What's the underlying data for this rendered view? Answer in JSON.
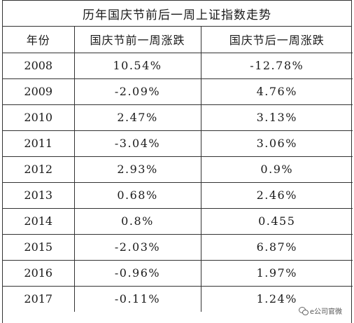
{
  "table": {
    "title": "历年国庆节前后一周上证指数走势",
    "headers": [
      "年份",
      "国庆节前一周涨跌",
      "国庆节后一周涨跌"
    ],
    "rows": [
      {
        "year": "2008",
        "before": "10.54%",
        "after": "-12.78%"
      },
      {
        "year": "2009",
        "before": "-2.09%",
        "after": "4.76%"
      },
      {
        "year": "2010",
        "before": "2.47%",
        "after": "3.13%"
      },
      {
        "year": "2011",
        "before": "-3.04%",
        "after": "3.06%"
      },
      {
        "year": "2012",
        "before": "2.93%",
        "after": "0.9%"
      },
      {
        "year": "2013",
        "before": "0.68%",
        "after": "2.46%"
      },
      {
        "year": "2014",
        "before": "0.8%",
        "after": "0.455"
      },
      {
        "year": "2015",
        "before": "-2.03%",
        "after": "6.87%"
      },
      {
        "year": "2016",
        "before": "-0.96%",
        "after": "1.97%"
      },
      {
        "year": "2017",
        "before": "-0.11%",
        "after": "1.24%"
      }
    ]
  },
  "watermark": {
    "icon": "wechat-icon",
    "text": "e公司官微"
  }
}
